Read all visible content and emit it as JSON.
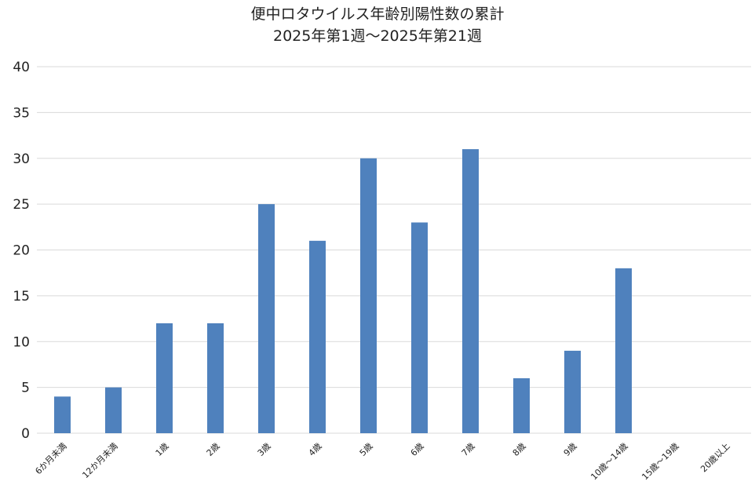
{
  "chart_data": {
    "type": "bar",
    "title": "便中ロタウイルス年齢別陽性数の累計",
    "subtitle": "2025年第1週〜2025年第21週",
    "categories": [
      "6か月未満",
      "12か月未満",
      "1歳",
      "2歳",
      "3歳",
      "4歳",
      "5歳",
      "6歳",
      "7歳",
      "8歳",
      "9歳",
      "10歳〜14歳",
      "15歳〜19歳",
      "20歳以上"
    ],
    "values": [
      4,
      5,
      12,
      12,
      25,
      21,
      30,
      23,
      31,
      6,
      9,
      18,
      0,
      0
    ],
    "ylim": [
      0,
      40
    ],
    "yticks": [
      0,
      5,
      10,
      15,
      20,
      25,
      30,
      35,
      40
    ],
    "grid": true,
    "legend": "none",
    "bar_color": "#4f81bd",
    "grid_color": "#d9d9d9"
  }
}
